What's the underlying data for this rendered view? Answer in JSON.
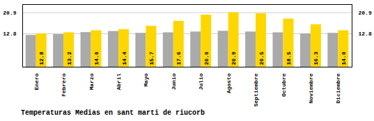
{
  "chart_data": {
    "type": "bar",
    "title": "Temperaturas Medias en sant marti de riucorb",
    "categories": [
      "Enero",
      "Febrero",
      "Marzo",
      "Abril",
      "Mayo",
      "Junio",
      "Julio",
      "Agosto",
      "Septiembre",
      "Octubre",
      "Noviembre",
      "Diciembre"
    ],
    "series": [
      {
        "color": "#AAAAAA",
        "values": [
          12.2,
          12.5,
          13.3,
          13.7,
          13.0,
          13.2,
          13.5,
          13.8,
          13.5,
          13.2,
          12.8,
          13.0
        ]
      },
      {
        "color": "#FFD700",
        "values": [
          12.8,
          13.2,
          14.0,
          14.4,
          15.7,
          17.6,
          20.0,
          20.9,
          20.5,
          18.5,
          16.3,
          14.0
        ],
        "value_labels": [
          "12.8",
          "13.2",
          "14.0",
          "14.4",
          "15.7",
          "17.6",
          "20.0",
          "20.9",
          "20.5",
          "18.5",
          "16.3",
          "14.0"
        ],
        "data_labels": true
      }
    ],
    "ylim": [
      0,
      24.0
    ],
    "yticks": [
      12.8,
      20.9
    ],
    "y2lim": [
      0,
      24.0
    ],
    "y2ticks": [
      12.8,
      20.9
    ],
    "grid": true
  }
}
